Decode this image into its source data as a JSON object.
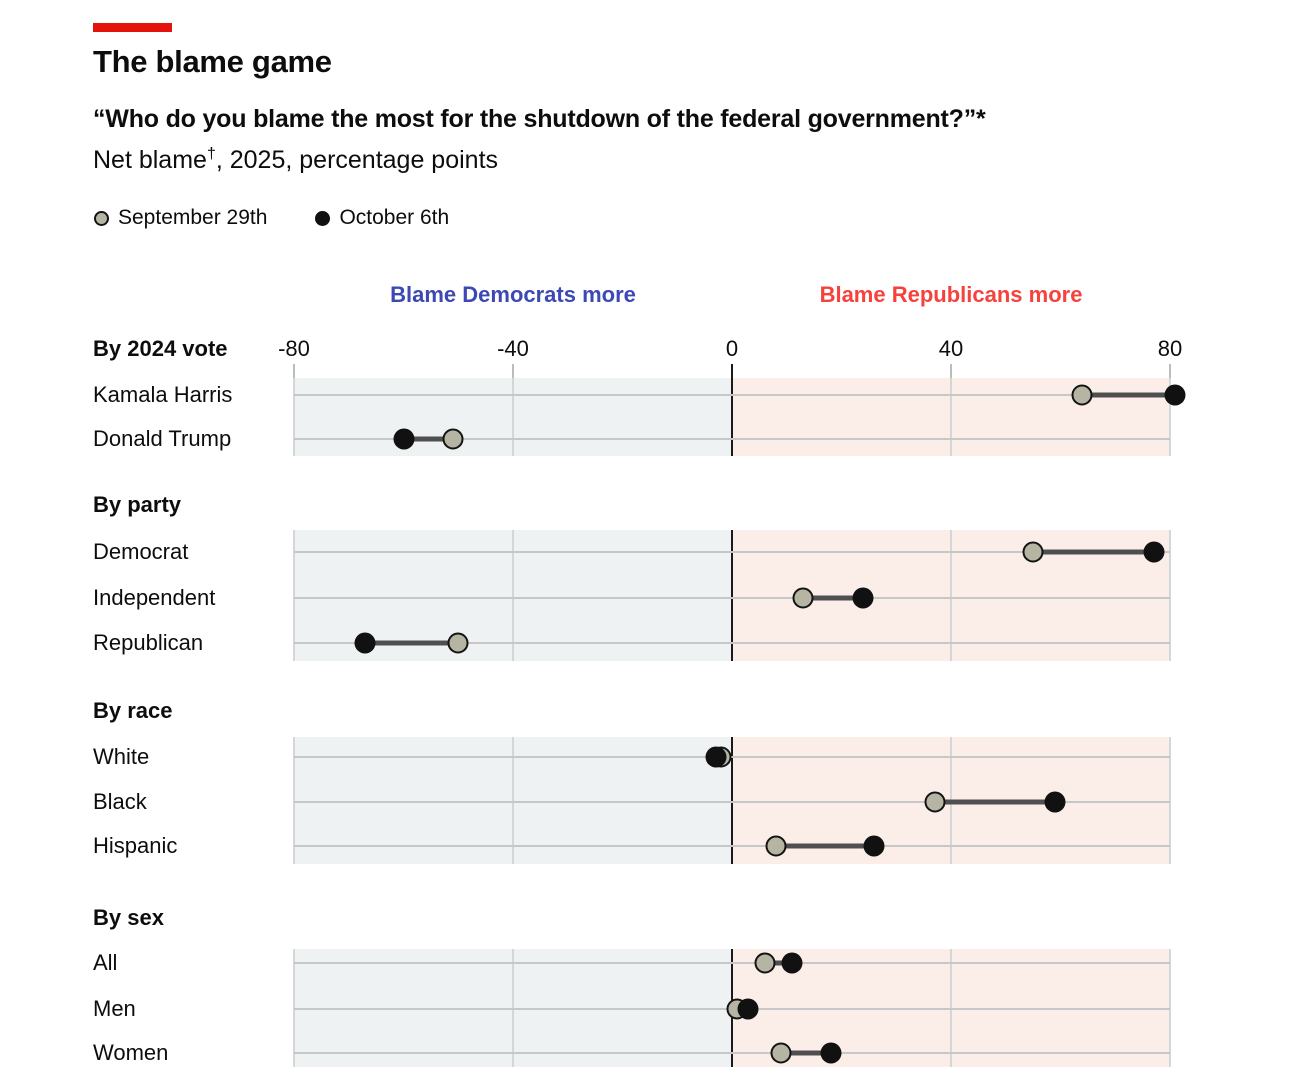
{
  "header": {
    "tag_bar_color": "#e3120b",
    "title": "The blame game",
    "subtitle_bold": "“Who do you blame the most for the shutdown of the federal government?”*",
    "subtitle_line2_pre": "Net blame",
    "subtitle_line2_sup": "†",
    "subtitle_line2_post": ", 2025, percentage points"
  },
  "chart_data": {
    "type": "dumbbell",
    "unit": "net blame, percentage points",
    "axis": {
      "ticks": [
        -80,
        -40,
        0,
        40,
        80
      ],
      "range": [
        -80,
        80
      ],
      "zero_line": true
    },
    "direction_labels": {
      "left": {
        "text": "Blame Democrats more",
        "color": "#3c49b5"
      },
      "right": {
        "text": "Blame Republicans more",
        "color": "#f6423c"
      }
    },
    "series": [
      {
        "key": "sep29",
        "name": "September 29th",
        "color": "#b6b5a4",
        "outline": "#141414"
      },
      {
        "key": "oct6",
        "name": "October 6th",
        "color": "#111111"
      }
    ],
    "background": {
      "left": "#eef2f3",
      "right": "#fbeee9"
    },
    "sections": [
      {
        "label": "By 2024 vote",
        "rows": [
          {
            "label": "Kamala Harris",
            "sep29": 64,
            "oct6": 81
          },
          {
            "label": "Donald Trump",
            "sep29": -51,
            "oct6": -60
          }
        ]
      },
      {
        "label": "By party",
        "rows": [
          {
            "label": "Democrat",
            "sep29": 55,
            "oct6": 77
          },
          {
            "label": "Independent",
            "sep29": 13,
            "oct6": 24
          },
          {
            "label": "Republican",
            "sep29": -50,
            "oct6": -67
          }
        ]
      },
      {
        "label": "By race",
        "rows": [
          {
            "label": "White",
            "sep29": -2,
            "oct6": -3
          },
          {
            "label": "Black",
            "sep29": 37,
            "oct6": 59
          },
          {
            "label": "Hispanic",
            "sep29": 8,
            "oct6": 26
          }
        ]
      },
      {
        "label": "By sex",
        "rows": [
          {
            "label": "All",
            "sep29": 6,
            "oct6": 11
          },
          {
            "label": "Men",
            "sep29": 1,
            "oct6": 3
          },
          {
            "label": "Women",
            "sep29": 9,
            "oct6": 18
          }
        ]
      }
    ]
  }
}
